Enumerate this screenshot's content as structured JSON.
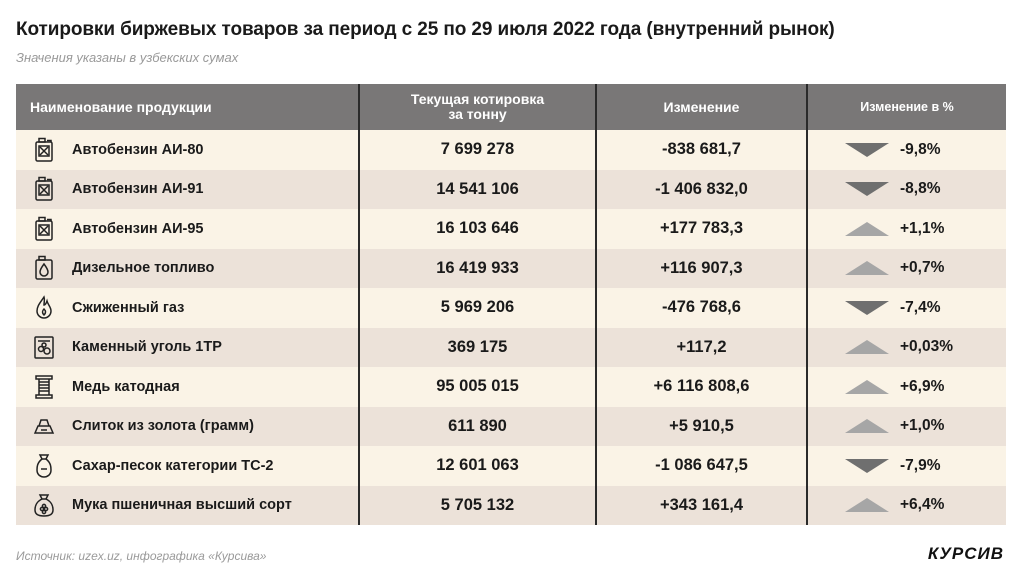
{
  "title": "Котировки биржевых товаров за период с 25 по 29 июля  2022 года (внутренний рынок)",
  "subtitle": "Значения указаны в узбекских сумах",
  "headers": {
    "name": "Наименование продукции",
    "price_line1": "Текущая котировка",
    "price_line2": "за тонну",
    "change": "Изменение",
    "change_pct": "Изменение в %"
  },
  "colors": {
    "up": "#a6a6a6",
    "down": "#6f6f6f",
    "row_odd": "#faf3e6",
    "row_even": "#ece2d9",
    "header": "#797777"
  },
  "rows": [
    {
      "icon": "fuel-canister-icon",
      "name": "Автобензин АИ-80",
      "price": "7 699 278",
      "change": "-838 681,7",
      "direction": "down",
      "pct": "-9,8%"
    },
    {
      "icon": "fuel-canister-icon",
      "name": "Автобензин АИ-91",
      "price": "14 541 106",
      "change": "-1 406 832,0",
      "direction": "down",
      "pct": "-8,8%"
    },
    {
      "icon": "fuel-canister-icon",
      "name": "Автобензин АИ-95",
      "price": "16 103 646",
      "change": "+177 783,3",
      "direction": "up",
      "pct": "+1,1%"
    },
    {
      "icon": "diesel-canister-icon",
      "name": "Дизельное топливо",
      "price": "16 419 933",
      "change": "+116 907,3",
      "direction": "up",
      "pct": "+0,7%"
    },
    {
      "icon": "gas-flame-icon",
      "name": "Сжиженный газ",
      "price": "5 969 206",
      "change": "-476 768,6",
      "direction": "down",
      "pct": "-7,4%"
    },
    {
      "icon": "coal-icon",
      "name": "Каменный уголь 1ТР",
      "price": "369 175",
      "change": "+117,2",
      "direction": "up",
      "pct": "+0,03%"
    },
    {
      "icon": "copper-coil-icon",
      "name": "Медь катодная",
      "price": "95 005 015",
      "change": "+6 116 808,6",
      "direction": "up",
      "pct": "+6,9%"
    },
    {
      "icon": "gold-bar-icon",
      "name": "Слиток из золота (грамм)",
      "price": "611 890",
      "change": "+5 910,5",
      "direction": "up",
      "pct": "+1,0%"
    },
    {
      "icon": "sugar-bag-icon",
      "name": "Сахар-песок категории ТС-2",
      "price": "12 601 063",
      "change": "-1 086 647,5",
      "direction": "down",
      "pct": "-7,9%"
    },
    {
      "icon": "flour-sack-icon",
      "name": "Мука пшеничная высший сорт",
      "price": "5 705 132",
      "change": "+343 161,4",
      "direction": "up",
      "pct": "+6,4%"
    }
  ],
  "source": "Источник: uzex.uz, инфографика «Курсива»",
  "logo": "КУРСИВ"
}
